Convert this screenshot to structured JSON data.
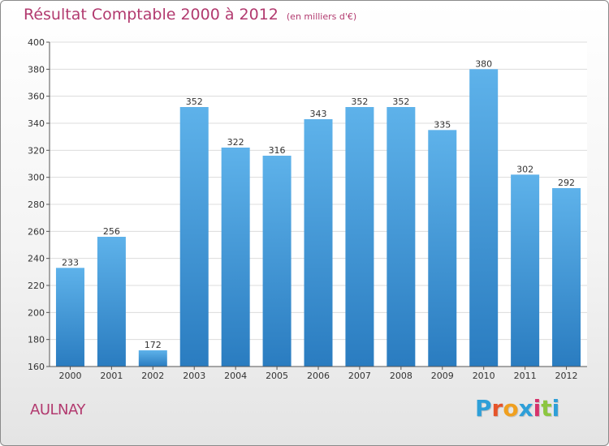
{
  "chart_data": {
    "type": "bar",
    "title": "Résultat Comptable 2000 à 2012",
    "subtitle": "(en milliers d'€)",
    "categories": [
      "2000",
      "2001",
      "2002",
      "2003",
      "2004",
      "2005",
      "2006",
      "2007",
      "2008",
      "2009",
      "2010",
      "2011",
      "2012"
    ],
    "values": [
      233,
      256,
      172,
      352,
      322,
      316,
      343,
      352,
      352,
      335,
      380,
      302,
      292
    ],
    "ylim": [
      160,
      400
    ],
    "yticks": [
      160,
      180,
      200,
      220,
      240,
      260,
      280,
      300,
      320,
      340,
      360,
      380,
      400
    ],
    "grid": true,
    "xlabel": "",
    "ylabel": ""
  },
  "commune": "AULNAY",
  "logo": {
    "letters": [
      "P",
      "r",
      "o",
      "x",
      "i",
      "t",
      "i"
    ],
    "colors": [
      "#2e9fd8",
      "#e6542a",
      "#f0a020",
      "#2e9fd8",
      "#d6336c",
      "#8cc63f",
      "#2e9fd8"
    ]
  },
  "colors": {
    "bar_light": "#5eb2ea",
    "bar_dark": "#2a7cc0",
    "title": "#b23a6f"
  }
}
